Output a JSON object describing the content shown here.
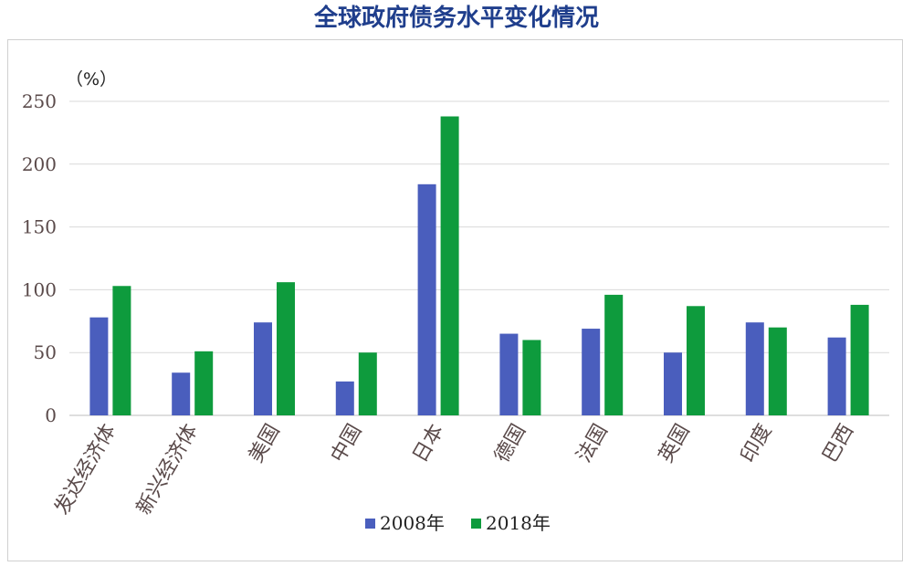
{
  "chart_data": {
    "type": "bar",
    "title": "全球政府债务水平变化情况",
    "unit_label": "（%）",
    "categories": [
      "发达经济体",
      "新兴经济体",
      "美国",
      "中国",
      "日本",
      "德国",
      "法国",
      "英国",
      "印度",
      "巴西"
    ],
    "series": [
      {
        "name": "2008年",
        "color": "#4a5ebd",
        "values": [
          78,
          34,
          74,
          27,
          184,
          65,
          69,
          50,
          74,
          62
        ]
      },
      {
        "name": "2018年",
        "color": "#0e9b3d",
        "values": [
          103,
          51,
          106,
          50,
          238,
          60,
          96,
          87,
          70,
          88
        ]
      }
    ],
    "yticks": [
      "0",
      "50",
      "100",
      "150",
      "200",
      "250"
    ],
    "ylim": [
      0,
      250
    ],
    "grid": true,
    "legend_position": "bottom"
  }
}
